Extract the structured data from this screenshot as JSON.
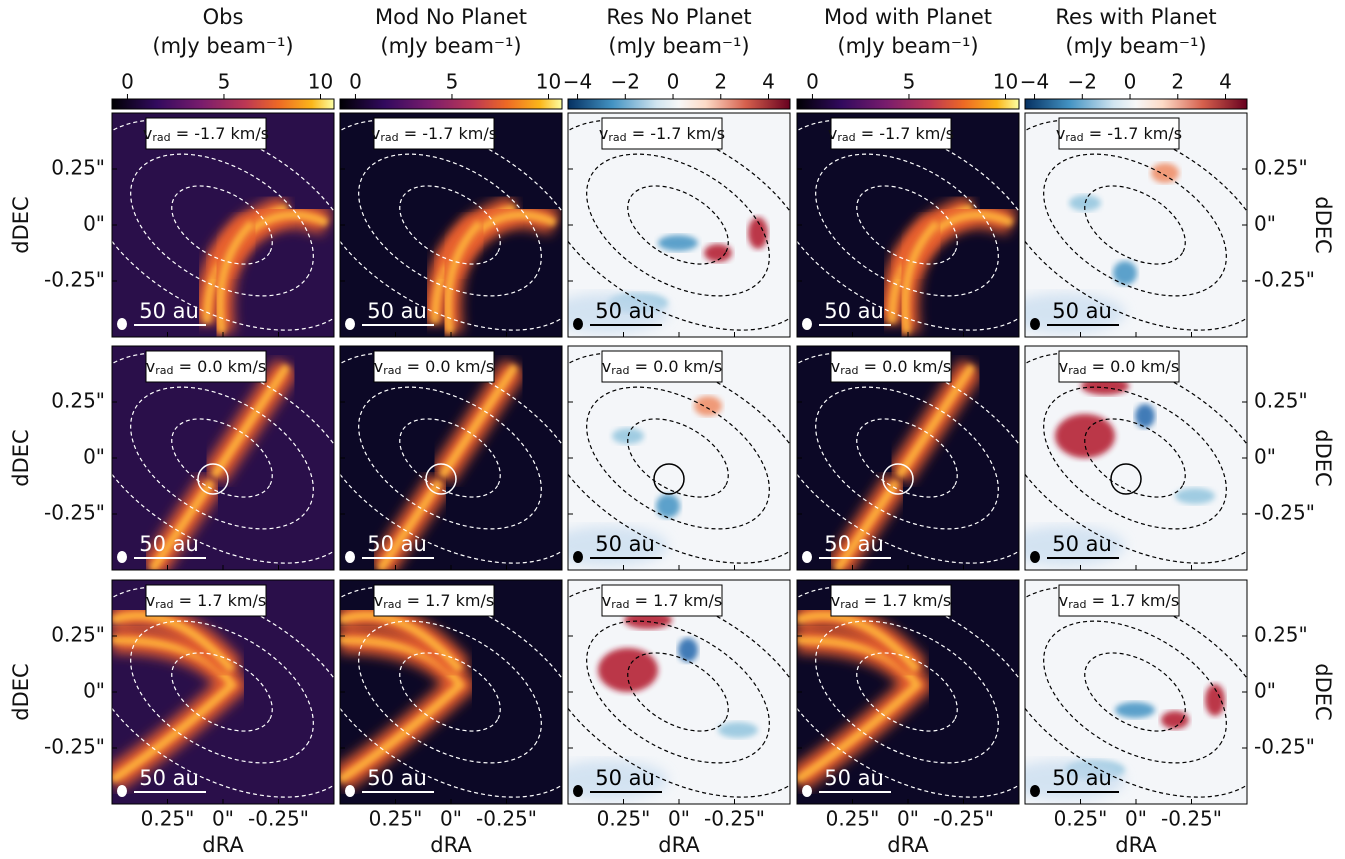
{
  "chart_data": {
    "type": "image-grid",
    "columns": [
      {
        "title": "Obs",
        "unit": "(mJy beam⁻¹)",
        "colormap": "inferno",
        "clim": [
          -0.8,
          10.7
        ],
        "cticks": [
          0,
          5,
          10
        ]
      },
      {
        "title": "Mod No Planet",
        "unit": "(mJy beam⁻¹)",
        "colormap": "inferno",
        "clim": [
          -0.8,
          10.7
        ],
        "cticks": [
          0,
          5,
          10
        ]
      },
      {
        "title": "Res No Planet",
        "unit": "(mJy beam⁻¹)",
        "colormap": "RdBu",
        "clim": [
          -4.4,
          4.9
        ],
        "cticks": [
          {
            "value": -4,
            "label": "−4"
          },
          {
            "value": -2,
            "label": "−2"
          },
          0,
          2,
          4
        ]
      },
      {
        "title": "Mod with Planet",
        "unit": "(mJy beam⁻¹)",
        "colormap": "inferno",
        "clim": [
          -0.8,
          10.7
        ],
        "cticks": [
          0,
          5,
          10
        ]
      },
      {
        "title": "Res with Planet",
        "unit": "(mJy beam⁻¹)",
        "colormap": "RdBu",
        "clim": [
          -4.4,
          4.9
        ],
        "cticks": [
          {
            "value": -4,
            "label": "−4"
          },
          {
            "value": -2,
            "label": "−2"
          },
          0,
          2,
          4
        ]
      }
    ],
    "rows": [
      {
        "symbol": "v",
        "subscript": "rad",
        "text": " = -1.7 km/s"
      },
      {
        "symbol": "v",
        "subscript": "rad",
        "text": " = 0.0 km/s"
      },
      {
        "symbol": "v",
        "subscript": "rad",
        "text": " = 1.7 km/s"
      }
    ],
    "xlabel": "dRA",
    "ylabel": "dDEC",
    "xlim": [
      0.5,
      -0.5
    ],
    "ylim": [
      -0.5,
      0.5
    ],
    "xticks": [
      {
        "value": 0.25,
        "label": "0.25\""
      },
      {
        "value": 0,
        "label": "0\""
      },
      {
        "value": -0.25,
        "label": "-0.25\""
      }
    ],
    "yticks": [
      {
        "value": 0.25,
        "label": "0.25\""
      },
      {
        "value": 0,
        "label": "0\""
      },
      {
        "value": -0.25,
        "label": "-0.25\""
      }
    ],
    "scalebar": "50 au"
  }
}
